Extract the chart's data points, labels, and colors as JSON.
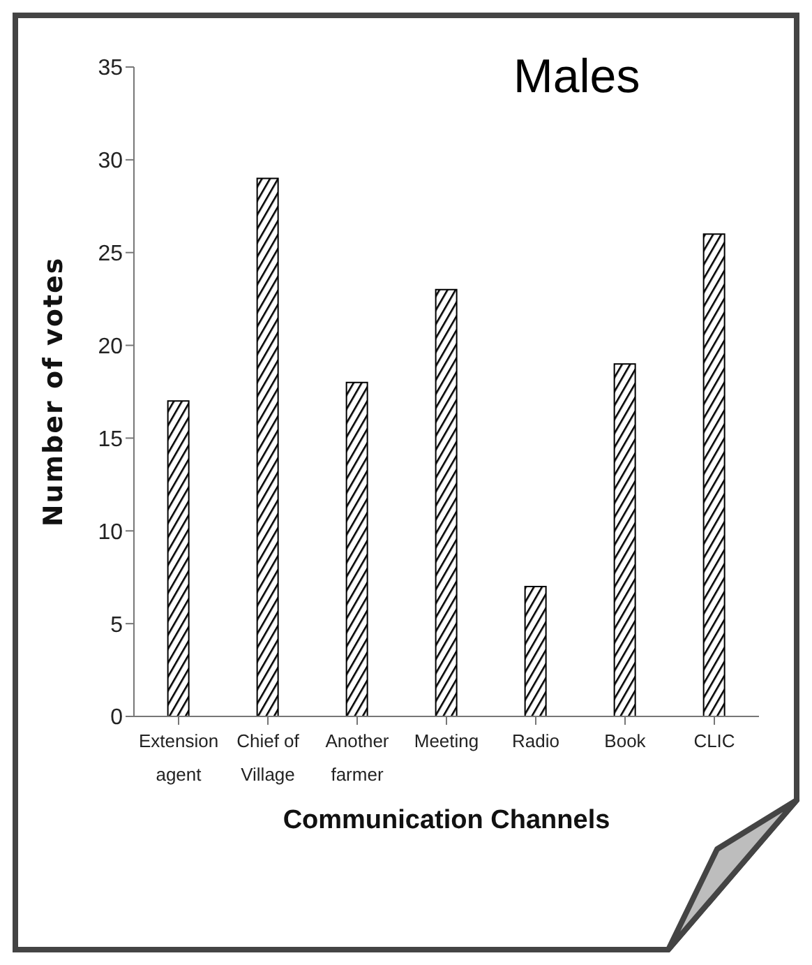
{
  "chart_data": {
    "type": "bar",
    "title": "Males",
    "xlabel": "Communication Channels",
    "ylabel": "Number of votes",
    "categories": [
      "Extension agent",
      "Chief of Village",
      "Another farmer",
      "Meeting",
      "Radio",
      "Book",
      "CLIC"
    ],
    "values": [
      17,
      29,
      18,
      23,
      7,
      19,
      26
    ],
    "color": "#000000",
    "ylim": [
      0,
      35
    ],
    "yticks": [
      0,
      5,
      10,
      15,
      20,
      25,
      30,
      35
    ],
    "grid": false,
    "legend": false
  }
}
